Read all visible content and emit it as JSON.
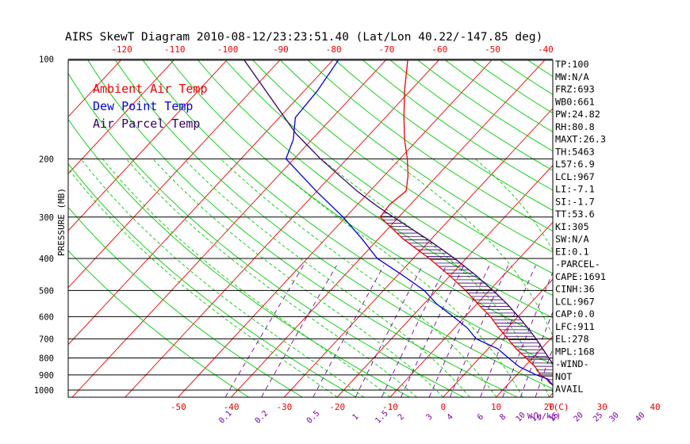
{
  "chart_data": {
    "type": "line",
    "title": "AIRS SkewT Diagram 2010-08-12/23:23:51.40 (Lat/Lon 40.22/-147.85 deg)",
    "ylabel": "PRESSURE (MB)",
    "xlabel_temp": "T(C)",
    "xlabel_mix": "W(g/kg)",
    "pressure_ticks": [
      100,
      200,
      300,
      400,
      500,
      600,
      700,
      800,
      900,
      1000
    ],
    "temp_ticks_top": [
      -120,
      -110,
      -100,
      -90,
      -80,
      -70,
      -60,
      -50,
      -40
    ],
    "temp_ticks_bottom": [
      -50,
      -40,
      -30,
      -20,
      -10,
      0,
      10,
      20,
      30,
      40
    ],
    "mixing_ratio_ticks": [
      "0.1",
      "0.2",
      "0.5",
      "1",
      "1.5",
      "2",
      "3",
      "4",
      "6",
      "8",
      "10",
      "12",
      "15",
      "20",
      "25",
      "30",
      "40"
    ],
    "legend": [
      {
        "label": "Ambient Air Temp",
        "color": "#ee0000"
      },
      {
        "label": "Dew Point Temp",
        "color": "#0000dd"
      },
      {
        "label": "Air Parcel Temp",
        "color": "#330066"
      }
    ],
    "series": [
      {
        "name": "Ambient Air Temp",
        "color": "#ee0000",
        "points": [
          [
            1011,
            25.0
          ],
          [
            1000,
            20.2
          ],
          [
            975,
            19.3
          ],
          [
            950,
            17.5
          ],
          [
            925,
            16.3
          ],
          [
            900,
            14.5
          ],
          [
            850,
            12.0
          ],
          [
            800,
            8.8
          ],
          [
            750,
            5.3
          ],
          [
            700,
            2.0
          ],
          [
            650,
            -1.6
          ],
          [
            600,
            -5.2
          ],
          [
            550,
            -9.7
          ],
          [
            500,
            -14.5
          ],
          [
            450,
            -20.2
          ],
          [
            400,
            -27.0
          ],
          [
            350,
            -35.2
          ],
          [
            300,
            -43.5
          ],
          [
            275,
            -43.9
          ],
          [
            250,
            -43.2
          ],
          [
            225,
            -45.5
          ],
          [
            200,
            -48.6
          ],
          [
            175,
            -52.5
          ],
          [
            150,
            -56.5
          ],
          [
            125,
            -61.0
          ],
          [
            100,
            -66.0
          ]
        ]
      },
      {
        "name": "Dew Point Temp",
        "color": "#0000dd",
        "points": [
          [
            1011,
            19.6
          ],
          [
            1000,
            19.6
          ],
          [
            975,
            19.0
          ],
          [
            950,
            17.8
          ],
          [
            925,
            16.5
          ],
          [
            900,
            13.7
          ],
          [
            850,
            9.0
          ],
          [
            800,
            5.5
          ],
          [
            750,
            1.8
          ],
          [
            700,
            -4.0
          ],
          [
            650,
            -7.5
          ],
          [
            600,
            -12.2
          ],
          [
            550,
            -17.5
          ],
          [
            500,
            -22.3
          ],
          [
            450,
            -29.0
          ],
          [
            400,
            -36.8
          ],
          [
            350,
            -43.0
          ],
          [
            300,
            -50.5
          ],
          [
            250,
            -60.2
          ],
          [
            200,
            -71.5
          ],
          [
            175,
            -73.5
          ],
          [
            150,
            -77.0
          ],
          [
            125,
            -77.5
          ],
          [
            100,
            -79.0
          ]
        ]
      },
      {
        "name": "Air Parcel Temp",
        "color": "#330066",
        "points": [
          [
            1011,
            25.0
          ],
          [
            967,
            21.2
          ],
          [
            950,
            20.4
          ],
          [
            900,
            18.1
          ],
          [
            850,
            15.7
          ],
          [
            800,
            13.1
          ],
          [
            750,
            10.3
          ],
          [
            700,
            7.3
          ],
          [
            650,
            3.9
          ],
          [
            600,
            0.1
          ],
          [
            550,
            -4.2
          ],
          [
            500,
            -9.3
          ],
          [
            450,
            -15.2
          ],
          [
            400,
            -22.2
          ],
          [
            350,
            -30.7
          ],
          [
            300,
            -41.0
          ],
          [
            278,
            -46.0
          ],
          [
            250,
            -52.5
          ],
          [
            200,
            -65.0
          ],
          [
            168,
            -74.0
          ],
          [
            100,
            -97.0
          ]
        ]
      }
    ],
    "indices": [
      "TP:100",
      "MW:N/A",
      "FRZ:693",
      "WB0:661",
      "PW:24.82",
      "RH:80.8",
      "MAXT:26.3",
      "TH:5463",
      "L57:6.9",
      "LCL:967",
      "LI:-7.1",
      "SI:-1.7",
      "TT:53.6",
      "KI:305",
      "SW:N/A",
      "EI:0.1",
      "-PARCEL-",
      "CAPE:1691",
      "CINH:36",
      "LCL:967",
      "CAP:0.0",
      "LFC:911",
      "EL:278",
      "MPL:168",
      "-WIND-",
      "NOT",
      "AVAIL"
    ],
    "colors": {
      "isotherm": "#ee0000",
      "dry_adiabat": "#00cc00",
      "moist_adiabat": "#00cc00",
      "mixing_ratio": "#7700aa",
      "isobar": "#000000",
      "cape_hatch": "#330066"
    }
  }
}
